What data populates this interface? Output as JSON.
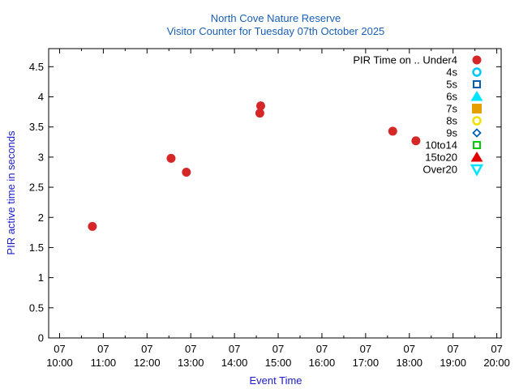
{
  "chart_data": {
    "type": "scatter",
    "title": "North Cove Nature Reserve",
    "subtitle": "Visitor Counter for Tuesday 07th October 2025",
    "xlabel": "Event Time",
    "ylabel": "PIR active time in seconds",
    "xlim": [
      9.75,
      20.1
    ],
    "ylim": [
      0,
      4.8
    ],
    "x_ticks": [
      {
        "value": 10,
        "day": "07",
        "time": "10:00"
      },
      {
        "value": 11,
        "day": "07",
        "time": "11:00"
      },
      {
        "value": 12,
        "day": "07",
        "time": "12:00"
      },
      {
        "value": 13,
        "day": "07",
        "time": "13:00"
      },
      {
        "value": 14,
        "day": "07",
        "time": "14:00"
      },
      {
        "value": 15,
        "day": "07",
        "time": "15:00"
      },
      {
        "value": 16,
        "day": "07",
        "time": "16:00"
      },
      {
        "value": 17,
        "day": "07",
        "time": "17:00"
      },
      {
        "value": 18,
        "day": "07",
        "time": "18:00"
      },
      {
        "value": 19,
        "day": "07",
        "time": "19:00"
      },
      {
        "value": 20,
        "day": "07",
        "time": "20:00"
      }
    ],
    "y_ticks": [
      {
        "value": 0,
        "label": "0"
      },
      {
        "value": 0.5,
        "label": "0.5"
      },
      {
        "value": 1,
        "label": "1"
      },
      {
        "value": 1.5,
        "label": "1.5"
      },
      {
        "value": 2,
        "label": "2"
      },
      {
        "value": 2.5,
        "label": "2.5"
      },
      {
        "value": 3,
        "label": "3"
      },
      {
        "value": 3.5,
        "label": "3.5"
      },
      {
        "value": 4,
        "label": "4"
      },
      {
        "value": 4.5,
        "label": "4.5"
      }
    ],
    "legend_position": "top-right",
    "series": [
      {
        "name": "PIR Time on .. Under4",
        "marker": "circle-filled",
        "color": "#d62728",
        "points": [
          {
            "x": 10.75,
            "y": 1.85
          },
          {
            "x": 12.55,
            "y": 2.98
          },
          {
            "x": 12.9,
            "y": 2.75
          },
          {
            "x": 14.6,
            "y": 3.85
          },
          {
            "x": 14.58,
            "y": 3.73
          },
          {
            "x": 17.62,
            "y": 3.43
          },
          {
            "x": 18.15,
            "y": 3.27
          }
        ]
      },
      {
        "name": "4s",
        "marker": "circle-open",
        "color": "#00c8ff",
        "points": []
      },
      {
        "name": "5s",
        "marker": "square-open",
        "color": "#0060ad",
        "points": []
      },
      {
        "name": "6s",
        "marker": "triangle-up-filled",
        "color": "#00e5ff",
        "points": []
      },
      {
        "name": "7s",
        "marker": "square-filled",
        "color": "#e69f00",
        "points": []
      },
      {
        "name": "8s",
        "marker": "circle-open",
        "color": "#f0e000",
        "points": []
      },
      {
        "name": "9s",
        "marker": "diamond-open",
        "color": "#0060ad",
        "points": []
      },
      {
        "name": "10to14",
        "marker": "square-open",
        "color": "#00cc00",
        "points": []
      },
      {
        "name": "15to20",
        "marker": "triangle-up-filled",
        "color": "#e00000",
        "points": []
      },
      {
        "name": "Over20",
        "marker": "triangle-down-open",
        "color": "#00e5ff",
        "points": []
      }
    ]
  }
}
